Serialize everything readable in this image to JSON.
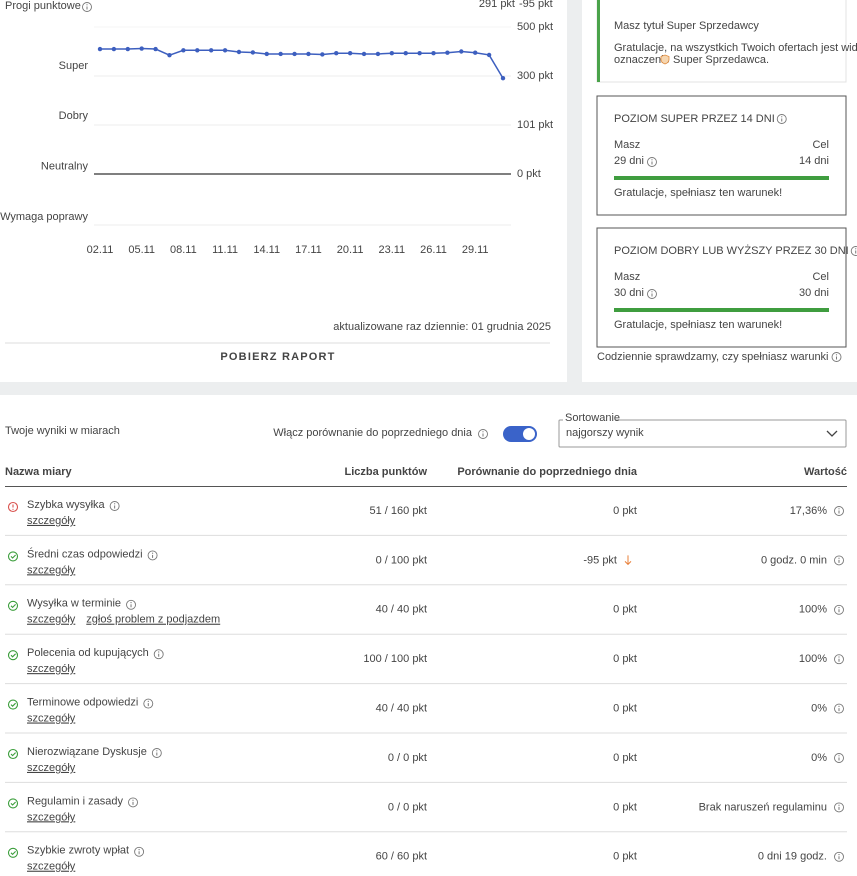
{
  "chart_data": {
    "type": "line",
    "title": "Progi punktowe",
    "score": "291 pkt",
    "change": "-95 pkt",
    "bands": [
      "Super",
      "Dobry",
      "Neutralny",
      "Wymaga poprawy"
    ],
    "categories": [
      "02.11",
      null,
      null,
      "05.11",
      null,
      null,
      "08.11",
      null,
      null,
      "11.11",
      null,
      null,
      "14.11",
      null,
      null,
      "17.11",
      null,
      null,
      "20.11",
      null,
      null,
      "23.11",
      null,
      null,
      "26.11",
      null,
      null,
      "29.11",
      null,
      null
    ],
    "series": [
      {
        "color": "#3d5fbf",
        "values": [
          410,
          410,
          410,
          412,
          410,
          385,
          405,
          405,
          405,
          405,
          398,
          396,
          390,
          390,
          390,
          390,
          388,
          393,
          393,
          390,
          390,
          393,
          393,
          393,
          393,
          395,
          400,
          395,
          386,
          291
        ]
      }
    ],
    "ylim": [
      0,
      500
    ],
    "yticks": [
      {
        "value": 500,
        "label": "500 pkt"
      },
      {
        "value": 300,
        "label": "300 pkt"
      },
      {
        "value": 101,
        "label": "101 pkt"
      },
      {
        "value": 0,
        "label": "0 pkt"
      }
    ],
    "grid": true,
    "footnote": "aktualizowane raz dziennie: 01 grudnia 2025"
  },
  "report_button": "POBIERZ RAPORT",
  "status": {
    "title": "Masz tytuł Super Sprzedawcy",
    "text": [
      "Gratulacje, na wszystkich Twoich ofertach jest widoczne",
      "oznaczenie",
      "Super Sprzedawca."
    ]
  },
  "cards": [
    {
      "title": "POZIOM SUPER PRZEZ 14 DNI",
      "have_label": "Masz",
      "have": "29 dni",
      "goal_label": "Cel",
      "goal": "14 dni",
      "note": "Gratulacje, spełniasz ten warunek!"
    },
    {
      "title": "POZIOM DOBRY LUB WYŻSZY PRZEZ 30 DNI",
      "have_label": "Masz",
      "have": "30 dni",
      "goal_label": "Cel",
      "goal": "30 dni",
      "note": "Gratulacje, spełniasz ten warunek!"
    }
  ],
  "cards_footer": "Codziennie sprawdzamy, czy spełniasz warunki",
  "results": {
    "title": "Twoje wyniki w miarach",
    "toggle_label": "Włącz porównanie do poprzedniego dnia",
    "toggle_on": true,
    "sort_label": "Sortowanie",
    "sort_value": "najgorszy wynik",
    "columns": [
      "Nazwa miary",
      "Liczba punktów",
      "Porównanie do poprzedniego dnia",
      "Wartość"
    ],
    "rows": [
      {
        "status": "error",
        "name": "Szybka wysyłka",
        "links": [
          "szczegóły"
        ],
        "points": "51 / 160 pkt",
        "change": "0 pkt",
        "value": "17,36%",
        "value_info": true
      },
      {
        "status": "ok",
        "name": "Średni czas odpowiedzi",
        "links": [
          "szczegóły"
        ],
        "points": "0 / 100 pkt",
        "change": "-95 pkt",
        "trend": "down",
        "value": "0 godz. 0 min",
        "value_info": true
      },
      {
        "status": "ok",
        "name": "Wysyłka w terminie",
        "links": [
          "szczegóły",
          "zgłoś problem z podjazdem"
        ],
        "points": "40 / 40 pkt",
        "change": "0 pkt",
        "value": "100%",
        "value_info": true
      },
      {
        "status": "ok",
        "name": "Polecenia od kupujących",
        "links": [
          "szczegóły"
        ],
        "points": "100 / 100 pkt",
        "change": "0 pkt",
        "value": "100%",
        "value_info": true
      },
      {
        "status": "ok",
        "name": "Terminowe odpowiedzi",
        "links": [
          "szczegóły"
        ],
        "points": "40 / 40 pkt",
        "change": "0 pkt",
        "value": "0%",
        "value_info": true
      },
      {
        "status": "ok",
        "name": "Nierozwiązane Dyskusje",
        "links": [
          "szczegóły"
        ],
        "points": "0 / 0 pkt",
        "change": "0 pkt",
        "value": "0%",
        "value_info": true
      },
      {
        "status": "ok",
        "name": "Regulamin i zasady",
        "links": [
          "szczegóły"
        ],
        "points": "0 / 0 pkt",
        "change": "0 pkt",
        "value": "Brak naruszeń regulaminu",
        "value_info": true
      },
      {
        "status": "ok",
        "name": "Szybkie zwroty wpłat",
        "links": [
          "szczegóły"
        ],
        "points": "60 / 60 pkt",
        "change": "0 pkt",
        "value": "0 dni 19 godz.",
        "value_info": true
      }
    ]
  }
}
